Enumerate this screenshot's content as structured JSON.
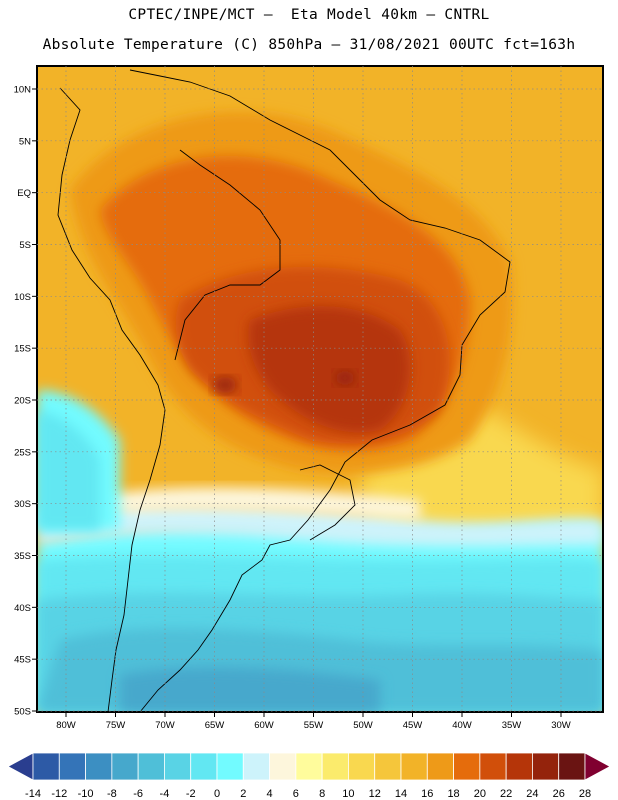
{
  "title_line1": "CPTEC/INPE/MCT –  Eta Model 40km – CNTRL",
  "title_line2": "Absolute Temperature (C) 850hPa – 31/08/2021 00UTC fct=163h",
  "lat_labels": [
    "10N",
    "5N",
    "EQ",
    "5S",
    "10S",
    "15S",
    "20S",
    "25S",
    "30S",
    "35S",
    "40S",
    "45S",
    "50S"
  ],
  "lat_values": [
    10,
    5,
    0,
    -5,
    -10,
    -15,
    -20,
    -25,
    -30,
    -35,
    -40,
    -45,
    -50
  ],
  "lon_labels": [
    "80W",
    "75W",
    "70W",
    "65W",
    "60W",
    "55W",
    "50W",
    "45W",
    "40W",
    "35W",
    "30W"
  ],
  "lon_values": [
    -80,
    -75,
    -70,
    -65,
    -60,
    -55,
    -50,
    -45,
    -40,
    -35,
    -30
  ],
  "colorbar": {
    "colors": [
      "#2a3e8f",
      "#2d5aa6",
      "#3474b8",
      "#3c8fc2",
      "#46a8cc",
      "#4fbfd8",
      "#59d3e5",
      "#62e7f2",
      "#72fbff",
      "#cdf3fb",
      "#fdf6dc",
      "#fffc9c",
      "#fbeb6c",
      "#f9d84f",
      "#f5c63b",
      "#f2b328",
      "#ee9a18",
      "#e56c0c",
      "#d14f0a",
      "#b53509",
      "#94230c",
      "#6a1412",
      "#800030"
    ],
    "labels": [
      "-14",
      "-12",
      "-10",
      "-8",
      "-6",
      "-4",
      "-2",
      "0",
      "2",
      "4",
      "6",
      "8",
      "10",
      "12",
      "14",
      "16",
      "18",
      "20",
      "22",
      "24",
      "26",
      "28"
    ]
  }
}
